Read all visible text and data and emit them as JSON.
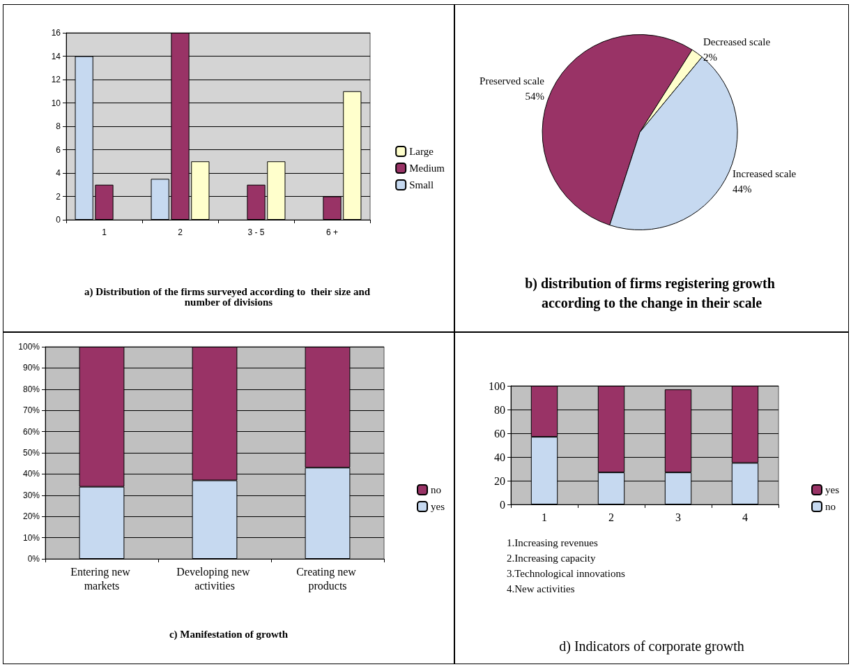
{
  "chart_data": [
    {
      "type": "bar",
      "title": "a) Distribution of the firms surveyed according to  their size and number of divisions",
      "categories": [
        "1",
        "2",
        "3 - 5",
        "6 +"
      ],
      "series": [
        {
          "name": "Small",
          "color": "#c6d9f0",
          "values": [
            14,
            3.5,
            0,
            0
          ]
        },
        {
          "name": "Medium",
          "color": "#993366",
          "values": [
            3,
            16,
            3,
            2
          ]
        },
        {
          "name": "Large",
          "color": "#ffffcc",
          "values": [
            0,
            5,
            5,
            11
          ]
        }
      ],
      "ylim": [
        0,
        16
      ],
      "yticks": [
        0,
        2,
        4,
        6,
        8,
        10,
        12,
        14,
        16
      ],
      "grid": "y",
      "legend": "right"
    },
    {
      "type": "pie",
      "title": "b) distribution of firms registering growth according to the change in their scale",
      "categories": [
        "Preserved scale",
        "Decreased scale",
        "Increased scale"
      ],
      "values": [
        54,
        2,
        44
      ],
      "value_labels": [
        "54%",
        "2%",
        "44%"
      ],
      "colors": [
        "#993366",
        "#ffffcc",
        "#c6d9f0"
      ]
    },
    {
      "type": "bar",
      "stacked": true,
      "title": "c) Manifestation of growth",
      "categories": [
        "Entering new markets",
        "Developing new activities",
        "Creating new products"
      ],
      "series": [
        {
          "name": "yes",
          "color": "#c6d9f0",
          "values": [
            34,
            37,
            43
          ]
        },
        {
          "name": "no",
          "color": "#993366",
          "values": [
            66,
            63,
            57
          ]
        }
      ],
      "ylim": [
        0,
        100
      ],
      "yticks": [
        {
          "value": 0,
          "label": "0%"
        },
        {
          "value": 10,
          "label": "10%"
        },
        {
          "value": 20,
          "label": "20%"
        },
        {
          "value": 30,
          "label": "30%"
        },
        {
          "value": 40,
          "label": "40%"
        },
        {
          "value": 50,
          "label": "50%"
        },
        {
          "value": 60,
          "label": "60%"
        },
        {
          "value": 70,
          "label": "70%"
        },
        {
          "value": 80,
          "label": "80%"
        },
        {
          "value": 90,
          "label": "90%"
        },
        {
          "value": 100,
          "label": "100%"
        }
      ],
      "grid": "y",
      "legend": "right"
    },
    {
      "type": "bar",
      "stacked": true,
      "title": "d) Indicators of corporate growth",
      "categories": [
        "1",
        "2",
        "3",
        "4"
      ],
      "series": [
        {
          "name": "no",
          "color": "#c6d9f0",
          "values": [
            57,
            27,
            27,
            35
          ]
        },
        {
          "name": "yes",
          "color": "#993366",
          "values": [
            43,
            73,
            70,
            65
          ]
        }
      ],
      "ylim": [
        0,
        100
      ],
      "yticks": [
        0,
        20,
        40,
        60,
        80,
        100
      ],
      "grid": "y",
      "legend": "right",
      "annotations": [
        "1.Increasing revenues",
        "2.Increasing capacity",
        "3.Technological innovations",
        "4.New activities"
      ]
    }
  ]
}
